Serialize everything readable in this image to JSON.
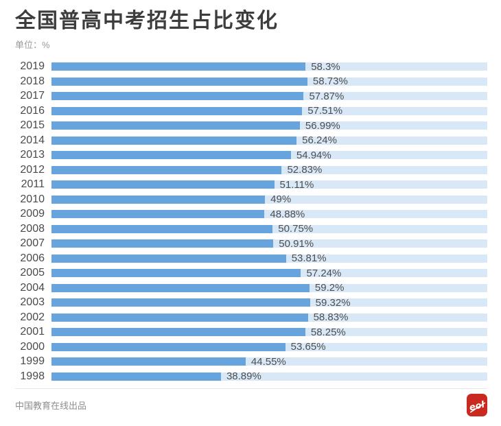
{
  "title": "全国普高中考招生占比变化",
  "unit_label": "单位：%",
  "colors": {
    "bar_fill": "#67a3dd",
    "bar_track": "#d9e8f7",
    "title_text": "#3d3d3d",
    "logo_red": "#c9291f"
  },
  "chart_data": {
    "type": "bar",
    "orientation": "horizontal",
    "title": "全国普高中考招生占比变化",
    "unit": "%",
    "xlim": [
      0,
      100
    ],
    "grid": false,
    "legend": "none",
    "categories": [
      "2019",
      "2018",
      "2017",
      "2016",
      "2015",
      "2014",
      "2013",
      "2012",
      "2011",
      "2010",
      "2009",
      "2008",
      "2007",
      "2006",
      "2005",
      "2004",
      "2003",
      "2002",
      "2001",
      "2000",
      "1999",
      "1998"
    ],
    "values": [
      58.3,
      58.73,
      57.87,
      57.51,
      56.99,
      56.24,
      54.94,
      52.83,
      51.11,
      49,
      48.88,
      50.75,
      50.91,
      53.81,
      57.24,
      59.2,
      59.32,
      58.83,
      58.25,
      53.65,
      44.55,
      38.89
    ],
    "labels": [
      "58.3%",
      "58.73%",
      "57.87%",
      "57.51%",
      "56.99%",
      "56.24%",
      "54.94%",
      "52.83%",
      "51.11%",
      "49%",
      "48.88%",
      "50.75%",
      "50.91%",
      "53.81%",
      "57.24%",
      "59.2%",
      "59.32%",
      "58.83%",
      "58.25%",
      "53.65%",
      "44.55%",
      "38.89%"
    ]
  },
  "footer": {
    "credit": "中国教育在线出品",
    "logo_text": "eol"
  }
}
